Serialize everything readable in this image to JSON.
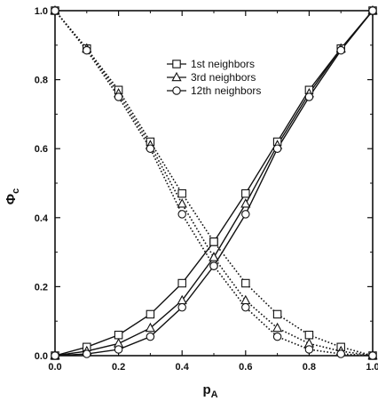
{
  "chart_data": {
    "type": "line",
    "xlabel": "p",
    "xlabel_sub": "A",
    "ylabel": "Φ",
    "ylabel_sub": "c",
    "xlim": [
      0.0,
      1.0
    ],
    "ylim": [
      0.0,
      1.0
    ],
    "xticks": [
      "0.0",
      "0.2",
      "0.4",
      "0.6",
      "0.8",
      "1.0"
    ],
    "yticks": [
      "0.0",
      "0.2",
      "0.4",
      "0.6",
      "0.8",
      "1.0"
    ],
    "grid": false,
    "legend_position": "top-center",
    "x": [
      0.0,
      0.1,
      0.2,
      0.3,
      0.4,
      0.5,
      0.6,
      0.7,
      0.8,
      0.9,
      1.0
    ],
    "series": [
      {
        "name": "1st neighbors",
        "marker": "square",
        "rising": [
          0.0,
          0.025,
          0.06,
          0.12,
          0.21,
          0.33,
          0.47,
          0.62,
          0.77,
          0.89,
          1.0
        ],
        "falling": [
          1.0,
          0.89,
          0.77,
          0.62,
          0.47,
          0.33,
          0.21,
          0.12,
          0.06,
          0.025,
          0.0
        ]
      },
      {
        "name": "3rd neighbors",
        "marker": "triangle",
        "rising": [
          0.0,
          0.013,
          0.035,
          0.08,
          0.16,
          0.285,
          0.44,
          0.61,
          0.76,
          0.89,
          1.0
        ],
        "falling": [
          1.0,
          0.89,
          0.76,
          0.61,
          0.44,
          0.285,
          0.16,
          0.08,
          0.035,
          0.013,
          0.0
        ]
      },
      {
        "name": "12th neighbors",
        "marker": "circle",
        "rising": [
          0.0,
          0.005,
          0.018,
          0.055,
          0.14,
          0.26,
          0.41,
          0.6,
          0.75,
          0.885,
          1.0
        ],
        "falling": [
          1.0,
          0.885,
          0.75,
          0.6,
          0.41,
          0.26,
          0.14,
          0.055,
          0.018,
          0.005,
          0.0
        ]
      }
    ],
    "rising_line_style": "solid",
    "falling_line_style": "dotted",
    "color": "#111111"
  }
}
